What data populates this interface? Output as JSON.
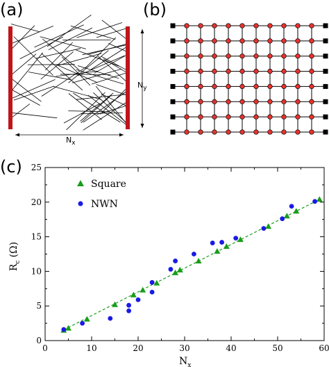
{
  "panels": {
    "a": {
      "label": "(a)",
      "dim_x": {
        "main": "N",
        "sub": "x"
      },
      "dim_y": {
        "main": "N",
        "sub": "y"
      }
    },
    "b": {
      "label": "(b)",
      "grid_cols": 12,
      "grid_rows": 8
    },
    "c": {
      "label": "(c)"
    }
  },
  "colors": {
    "electrode": "#c0151a",
    "wire": "#000000",
    "lattice_node": "#e8322e",
    "terminal": "#000000",
    "square": "#1a9d1a",
    "nwn": "#1a1ae6",
    "fit_line": "#1a9d1a"
  },
  "chart_data": {
    "type": "scatter",
    "title": "",
    "xlabel": {
      "main": "N",
      "sub": "x"
    },
    "ylabel": {
      "main": "R",
      "sub": "c",
      "unit": "(Ω)"
    },
    "xlim": [
      0,
      60
    ],
    "ylim": [
      0,
      25
    ],
    "xticks": [
      "0",
      "10",
      "20",
      "30",
      "40",
      "50",
      "60"
    ],
    "yticks": [
      "0",
      "5",
      "10",
      "15",
      "20",
      "25"
    ],
    "legend_position": "top-left",
    "grid": false,
    "series": [
      {
        "name": "Square",
        "marker": "triangle",
        "x": [
          4,
          5,
          9,
          15,
          19,
          21,
          24,
          28,
          29,
          33,
          37,
          39,
          42,
          48,
          52,
          54,
          59
        ],
        "y": [
          1.5,
          1.8,
          3.1,
          5.2,
          6.6,
          7.3,
          8.3,
          9.8,
          10.2,
          11.5,
          12.9,
          13.6,
          14.6,
          16.5,
          18.0,
          18.7,
          20.4
        ]
      },
      {
        "name": "NWN",
        "marker": "circle",
        "x": [
          4,
          8,
          14,
          18,
          18,
          20,
          23,
          23,
          27,
          28,
          32,
          36,
          38,
          41,
          47,
          51,
          53,
          58
        ],
        "y": [
          1.6,
          2.5,
          3.2,
          4.3,
          5.1,
          5.9,
          7.0,
          8.4,
          10.3,
          11.5,
          12.5,
          14.1,
          14.2,
          14.8,
          16.2,
          17.6,
          19.4,
          20.1
        ]
      }
    ],
    "fit_line": {
      "style": "dashed",
      "x": [
        4,
        59
      ],
      "y": [
        1.55,
        20.4
      ]
    }
  }
}
